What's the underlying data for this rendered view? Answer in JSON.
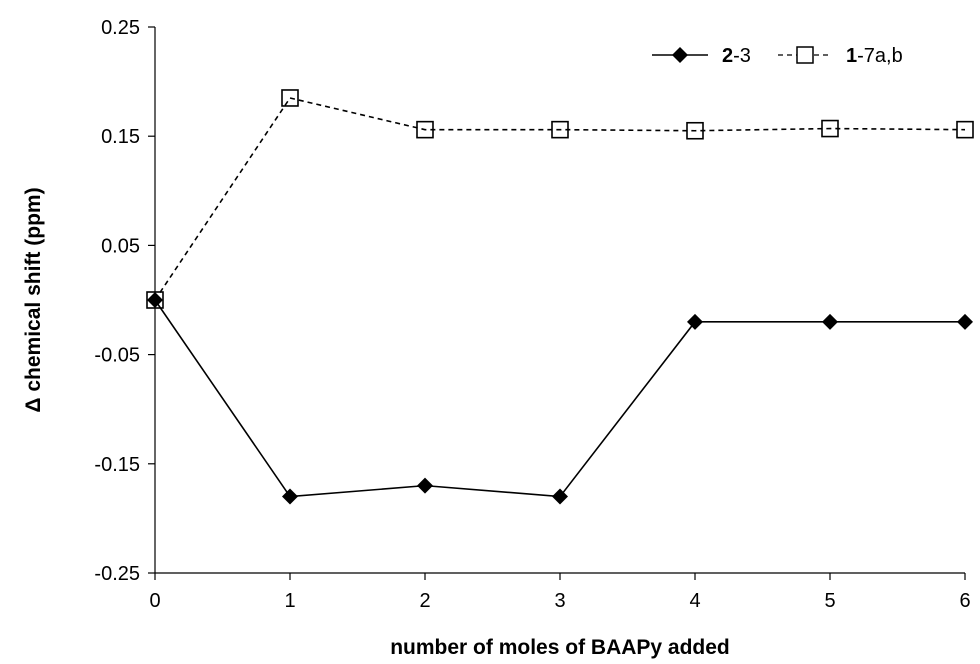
{
  "chart_data": {
    "type": "line",
    "title": "",
    "xlabel": "number of moles of BAAPy added",
    "ylabel": "Δ chemical shift (ppm)",
    "x": [
      0,
      1,
      2,
      3,
      4,
      5,
      6
    ],
    "x_tick_labels": [
      "0",
      "1",
      "2",
      "3",
      "4",
      "5",
      "6"
    ],
    "xlim": [
      0,
      6
    ],
    "y_ticks": [
      0.25,
      0.15,
      0.05,
      -0.05,
      -0.15,
      -0.25
    ],
    "y_tick_labels": [
      "0.25",
      "0.15",
      "0.05",
      "-0.05",
      "-0.15",
      "-0.25"
    ],
    "ylim": [
      -0.25,
      0.25
    ],
    "grid": false,
    "legend_position": "top-right",
    "series": [
      {
        "legend_bold": "2",
        "legend_rest": "-3",
        "values": [
          0.0,
          -0.18,
          -0.17,
          -0.18,
          -0.02,
          -0.02,
          -0.02
        ],
        "marker": "diamond",
        "line_style": "solid",
        "color": "#000000"
      },
      {
        "legend_bold": "1",
        "legend_rest": "-7a,b",
        "values": [
          0.0,
          0.185,
          0.156,
          0.156,
          0.155,
          0.157,
          0.156
        ],
        "marker": "square-open",
        "line_style": "dashed",
        "color": "#000000"
      }
    ]
  }
}
